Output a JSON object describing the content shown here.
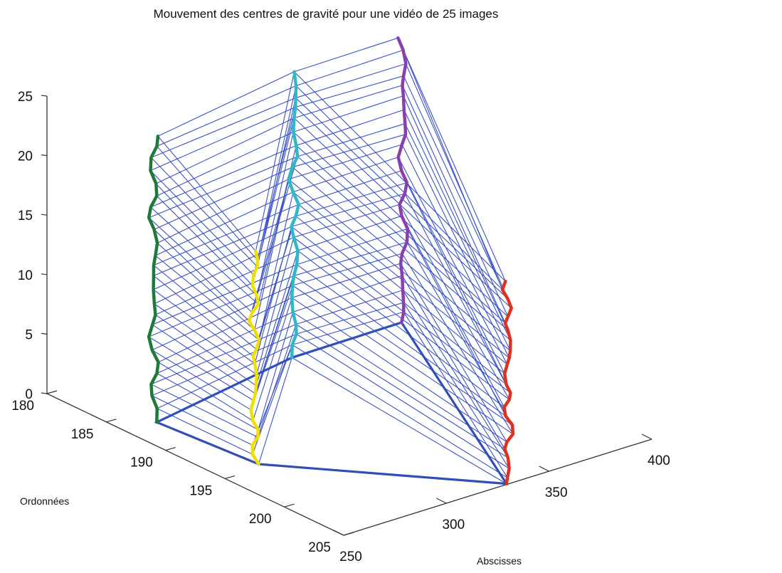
{
  "chart_data": {
    "type": "line3d",
    "title": "Mouvement des centres de gravité pour une vidéo de 25 images",
    "xlabel": "Abscisses",
    "ylabel": "Ordonnées",
    "zlabel": "",
    "xlim": [
      250,
      400
    ],
    "ylim": [
      180,
      205
    ],
    "zlim": [
      0,
      25
    ],
    "x_ticks": [
      "250",
      "300",
      "350",
      "400"
    ],
    "y_ticks": [
      "180",
      "185",
      "190",
      "195",
      "200",
      "205"
    ],
    "z_ticks": [
      "0",
      "5",
      "10",
      "15",
      "20",
      "25"
    ],
    "frames": [
      2,
      3,
      4,
      5,
      6,
      7,
      8,
      9,
      10,
      11,
      12,
      13,
      14,
      15,
      16,
      17,
      18,
      19,
      20,
      21,
      22,
      23,
      24,
      25,
      26
    ],
    "series": [
      {
        "color": "#1f7a3a",
        "x": 250,
        "y": 189,
        "z_start": 2,
        "z_end": 26
      },
      {
        "color": "#f0e000",
        "x": 253,
        "y": 197,
        "z_start": 2,
        "z_end": 20
      },
      {
        "color": "#2fb8c8",
        "x": 330,
        "y": 187,
        "z_start": 2,
        "z_end": 26
      },
      {
        "color": "#8a3fb0",
        "x": 383,
        "y": 187,
        "z_start": 2,
        "z_end": 26
      },
      {
        "color": "#e0301e",
        "x": 330,
        "y": 205,
        "z_start": 0,
        "z_end": 17
      }
    ]
  }
}
